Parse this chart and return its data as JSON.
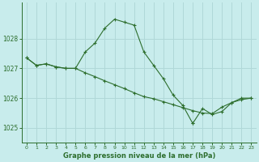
{
  "title": "Graphe pression niveau de la mer (hPa)",
  "background_color": "#c8ecec",
  "grid_color": "#b0d8d8",
  "line_color": "#2d6e2d",
  "marker_color": "#2d6e2d",
  "xlim": [
    -0.5,
    23.5
  ],
  "ylim": [
    1024.5,
    1029.2
  ],
  "yticks": [
    1025,
    1026,
    1027,
    1028
  ],
  "xticks": [
    0,
    1,
    2,
    3,
    4,
    5,
    6,
    7,
    8,
    9,
    10,
    11,
    12,
    13,
    14,
    15,
    16,
    17,
    18,
    19,
    20,
    21,
    22,
    23
  ],
  "series1_x": [
    0,
    1,
    2,
    3,
    4,
    5,
    6,
    7,
    8,
    9,
    10,
    11,
    12,
    13,
    14,
    15,
    16,
    17
  ],
  "series1_y": [
    1027.35,
    1027.1,
    1027.15,
    1027.05,
    1027.0,
    1027.0,
    1027.55,
    1027.85,
    1028.35,
    1028.65,
    1028.55,
    1028.45,
    1027.55,
    1027.1,
    1026.65,
    1026.1,
    1025.75,
    1025.15
  ],
  "series2_x": [
    0,
    1,
    2,
    3,
    4,
    5,
    6,
    7,
    8,
    9,
    10,
    11,
    12,
    13,
    14,
    15,
    16,
    17,
    18,
    19,
    20,
    21,
    22,
    23
  ],
  "series2_y": [
    1027.35,
    1027.1,
    1027.15,
    1027.05,
    1027.0,
    1027.0,
    1026.85,
    1026.72,
    1026.58,
    1026.45,
    1026.32,
    1026.18,
    1026.05,
    1025.98,
    1025.88,
    1025.78,
    1025.68,
    1025.58,
    1025.5,
    1025.48,
    1025.7,
    1025.85,
    1026.0,
    1026.0
  ],
  "series3_x": [
    17,
    18,
    19,
    20,
    21,
    22,
    23
  ],
  "series3_y": [
    1025.15,
    1025.65,
    1025.45,
    1025.55,
    1025.85,
    1025.95,
    1026.0
  ]
}
